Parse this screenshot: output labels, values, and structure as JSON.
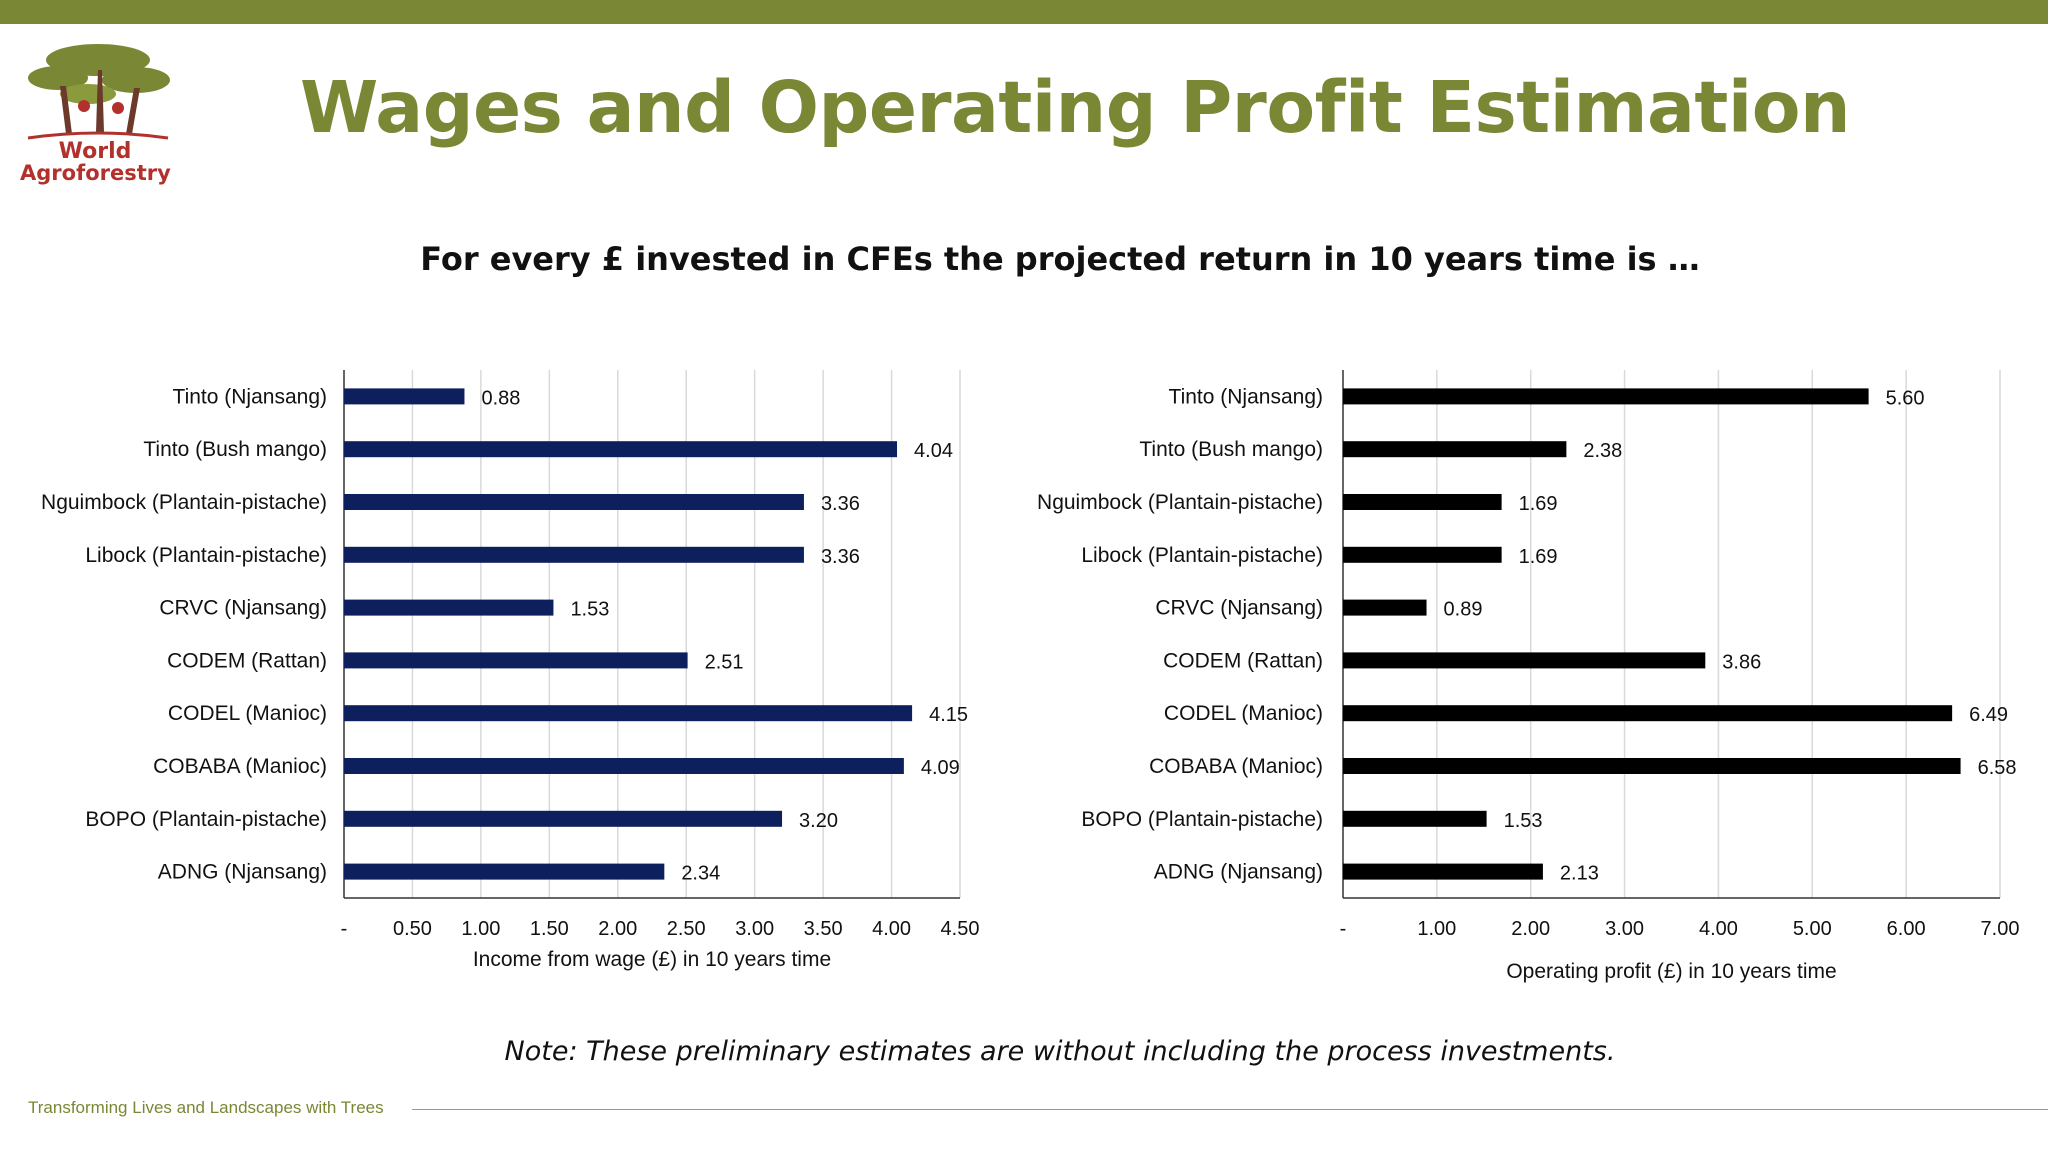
{
  "header": {
    "logo_line1": "World",
    "logo_line2": "Agroforestry",
    "title": "Wages and Operating Profit Estimation",
    "subtitle": "For every £ invested in CFEs the projected return in 10 years time is …"
  },
  "note": "Note: These preliminary estimates are without including the process investments.",
  "footer": {
    "tagline": "Transforming Lives and Landscapes with Trees"
  },
  "colors": {
    "accent": "#7a8734",
    "logo_red": "#b3312c",
    "wage_bar": "#0d1f5c",
    "profit_bar": "#000000"
  },
  "chart_data": [
    {
      "type": "bar",
      "orientation": "horizontal",
      "categories": [
        "Tinto (Njansang)",
        "Tinto (Bush mango)",
        "Nguimbock (Plantain-pistache)",
        "Libock (Plantain-pistache)",
        "CRVC (Njansang)",
        "CODEM (Rattan)",
        "CODEL (Manioc)",
        "COBABA (Manioc)",
        "BOPO (Plantain-pistache)",
        "ADNG (Njansang)"
      ],
      "values": [
        0.88,
        4.04,
        3.36,
        3.36,
        1.53,
        2.51,
        4.15,
        4.09,
        3.2,
        2.34
      ],
      "value_labels": [
        "0.88",
        "4.04",
        "3.36",
        "3.36",
        "1.53",
        "2.51",
        "4.15",
        "4.09",
        "3.20",
        "2.34"
      ],
      "xlabel": "Income from wage (£) in 10 years time",
      "xlim": [
        0,
        4.5
      ],
      "ticks": [
        0,
        0.5,
        1.0,
        1.5,
        2.0,
        2.5,
        3.0,
        3.5,
        4.0,
        4.5
      ],
      "tick_labels": [
        "-",
        "0.50",
        "1.00",
        "1.50",
        "2.00",
        "2.50",
        "3.00",
        "3.50",
        "4.00",
        "4.50"
      ],
      "grid": true,
      "color": "#0d1f5c"
    },
    {
      "type": "bar",
      "orientation": "horizontal",
      "categories": [
        "Tinto (Njansang)",
        "Tinto (Bush mango)",
        "Nguimbock (Plantain-pistache)",
        "Libock (Plantain-pistache)",
        "CRVC (Njansang)",
        "CODEM (Rattan)",
        "CODEL (Manioc)",
        "COBABA (Manioc)",
        "BOPO (Plantain-pistache)",
        "ADNG (Njansang)"
      ],
      "values": [
        5.6,
        2.38,
        1.69,
        1.69,
        0.89,
        3.86,
        6.49,
        6.58,
        1.53,
        2.13
      ],
      "value_labels": [
        "5.60",
        "2.38",
        "1.69",
        "1.69",
        "0.89",
        "3.86",
        "6.49",
        "6.58",
        "1.53",
        "2.13"
      ],
      "xlabel": "Operating profit (£) in 10 years time",
      "xlim": [
        0,
        7
      ],
      "ticks": [
        0,
        1,
        2,
        3,
        4,
        5,
        6,
        7
      ],
      "tick_labels": [
        "-",
        "1.00",
        "2.00",
        "3.00",
        "4.00",
        "5.00",
        "6.00",
        "7.00"
      ],
      "grid": true,
      "color": "#000000"
    }
  ]
}
